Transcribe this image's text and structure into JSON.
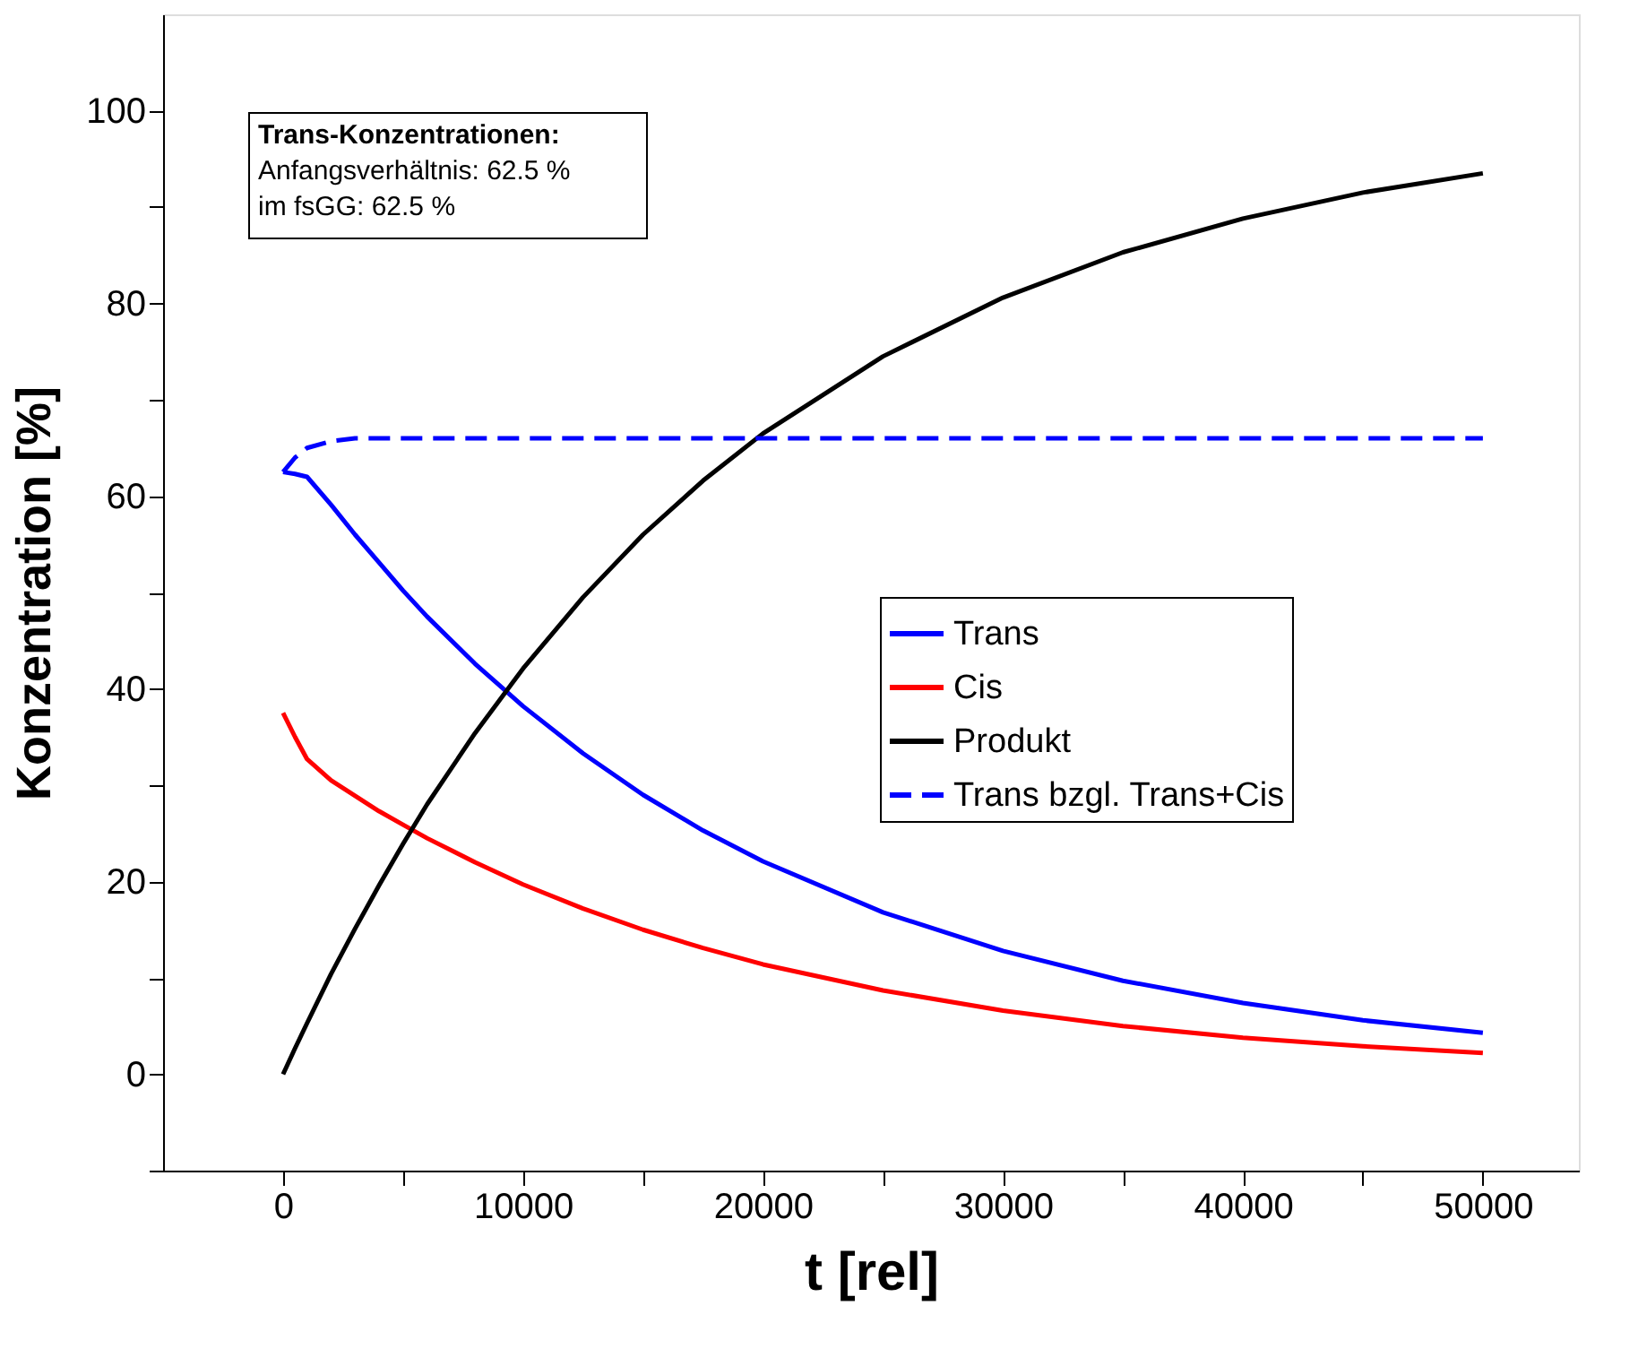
{
  "chart_data": {
    "type": "line",
    "xlabel": "t [rel]",
    "ylabel": "Konzentration [%]",
    "x": [
      0,
      500,
      1000,
      2000,
      3000,
      4000,
      5000,
      6000,
      8000,
      10000,
      12500,
      15000,
      17500,
      20000,
      25000,
      30000,
      35000,
      40000,
      45000,
      50000
    ],
    "series": [
      {
        "name": "Trans",
        "color": "#0000ff",
        "line_style": "solid",
        "values": [
          62.5,
          62.3,
          62.0,
          59.1,
          56.0,
          53.1,
          50.2,
          47.5,
          42.6,
          38.2,
          33.3,
          29.0,
          25.3,
          22.1,
          16.8,
          12.8,
          9.7,
          7.4,
          5.6,
          4.3
        ]
      },
      {
        "name": "Cis",
        "color": "#ff0000",
        "line_style": "solid",
        "values": [
          37.5,
          35.0,
          32.7,
          30.5,
          28.9,
          27.3,
          25.9,
          24.5,
          22.0,
          19.7,
          17.2,
          15.0,
          13.1,
          11.4,
          8.7,
          6.6,
          5.0,
          3.8,
          2.9,
          2.2
        ]
      },
      {
        "name": "Produkt",
        "color": "#000000",
        "line_style": "solid",
        "values": [
          0,
          2.7,
          5.3,
          10.4,
          15.1,
          19.6,
          23.9,
          28.0,
          35.4,
          42.1,
          49.5,
          56.0,
          61.6,
          66.5,
          74.5,
          80.6,
          85.3,
          88.8,
          91.5,
          93.5
        ]
      },
      {
        "name": "Trans bzgl. Trans+Cis",
        "color": "#0000ff",
        "line_style": "dashed",
        "values": [
          62.5,
          64,
          65,
          65.7,
          66,
          66,
          66,
          66,
          66,
          66,
          66,
          66,
          66,
          66,
          66,
          66,
          66,
          66,
          66,
          66
        ]
      }
    ],
    "xlim": [
      -5000,
      54000
    ],
    "xticks": [
      0,
      {
        "value": 5000,
        "label": null
      },
      10000,
      {
        "value": 15000,
        "label": null
      },
      20000,
      {
        "value": 25000,
        "label": null
      },
      30000,
      {
        "value": 35000,
        "label": null
      },
      40000,
      {
        "value": 45000,
        "label": null
      },
      50000
    ],
    "ylim": [
      -10,
      110
    ],
    "yticks": [
      {
        "value": -10,
        "label": null
      },
      0,
      {
        "value": 10,
        "label": null
      },
      20,
      {
        "value": 30,
        "label": null
      },
      40,
      {
        "value": 50,
        "label": null
      },
      60,
      {
        "value": 70,
        "label": null
      },
      80,
      {
        "value": 90,
        "label": null
      },
      100
    ],
    "annotations": [
      "Trans-Konzentrationen:",
      "Anfangsverhältnis: 62.5 %",
      "im fsGG: 62.5 %"
    ],
    "legend": "right",
    "grid": false,
    "marker": "none"
  }
}
